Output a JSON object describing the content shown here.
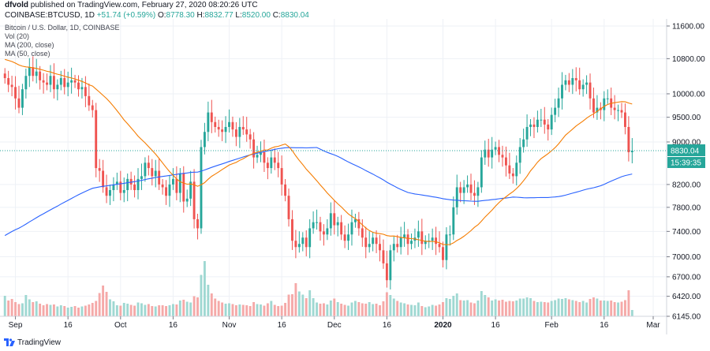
{
  "header": {
    "author": "dfvold",
    "published": "published on TradingView.com, February 27, 2020 08:20:26 UTC",
    "symbol": "COINBASE:BTCUSD, 1D",
    "change": "+51.74 (+0.59%)",
    "o_label": "O:",
    "o_value": "8778.30",
    "h_label": "H:",
    "h_value": "8832.77",
    "l_label": "L:",
    "l_value": "8520.00",
    "c_label": "C:",
    "c_value": "8830.04"
  },
  "legend": {
    "title": "Bitcoin / U.S. Dollar, 1D, COINBASE",
    "vol": "Vol (20)",
    "ma200": "MA (200, close)",
    "ma50": "MA (50, close)"
  },
  "footer": {
    "brand": "TradingView"
  },
  "colors": {
    "up": "#26a69a",
    "down": "#ef5350",
    "vol_up": "#9fd8d2",
    "vol_down": "#f5a9a8",
    "ma200": "#2962ff",
    "ma50": "#f57c00",
    "last_price_bg": "#26a69a",
    "grid": "#eef1f6"
  },
  "chart_data": {
    "type": "candlestick",
    "title": "Bitcoin / U.S. Dollar, 1D, COINBASE",
    "y_ticks": [
      11600,
      10800,
      10000,
      9500,
      9000,
      8200,
      7800,
      7400,
      7000,
      6700,
      6420,
      6145
    ],
    "x_ticks": [
      {
        "label": "Sep",
        "index": 3
      },
      {
        "label": "16",
        "index": 18
      },
      {
        "label": "Oct",
        "index": 33
      },
      {
        "label": "16",
        "index": 48
      },
      {
        "label": "Nov",
        "index": 64
      },
      {
        "label": "16",
        "index": 79
      },
      {
        "label": "Dec",
        "index": 94
      },
      {
        "label": "16",
        "index": 109
      },
      {
        "label": "2020",
        "index": 125
      },
      {
        "label": "16",
        "index": 140
      },
      {
        "label": "Feb",
        "index": 156
      },
      {
        "label": "16",
        "index": 171
      },
      {
        "label": "Mar",
        "index": 185
      }
    ],
    "y_scale": "log",
    "y_range": [
      6145,
      11700
    ],
    "last_price": "8830.04",
    "countdown": "15:39:35",
    "close": [
      10350,
      10200,
      10150,
      9900,
      9700,
      10100,
      10400,
      10600,
      10400,
      10500,
      10300,
      10250,
      10200,
      10400,
      10100,
      10200,
      10350,
      10150,
      10250,
      10300,
      10250,
      10100,
      10150,
      9950,
      9750,
      9650,
      8500,
      8450,
      8150,
      8000,
      8100,
      8200,
      8250,
      8050,
      8100,
      8300,
      8200,
      8100,
      8300,
      8350,
      8600,
      8500,
      8350,
      8450,
      8200,
      8150,
      8000,
      8200,
      8300,
      8050,
      8400,
      7900,
      7950,
      8250,
      7600,
      7450,
      8900,
      9200,
      9600,
      9400,
      9300,
      9250,
      9200,
      9300,
      9400,
      9250,
      9100,
      9300,
      9250,
      9150,
      9050,
      8700,
      8750,
      8800,
      8600,
      8500,
      8700,
      8600,
      8500,
      8200,
      8000,
      7600,
      7250,
      7150,
      7200,
      7300,
      7150,
      7450,
      7550,
      7550,
      7400,
      7350,
      7450,
      7700,
      7500,
      7550,
      7350,
      7250,
      7350,
      7550,
      7600,
      7450,
      7300,
      7150,
      7200,
      7300,
      7200,
      7100,
      6900,
      6650,
      7100,
      7200,
      7150,
      7300,
      7350,
      7200,
      7250,
      7300,
      7400,
      7200,
      7250,
      7250,
      7300,
      7200,
      7150,
      6950,
      7350,
      7350,
      7800,
      8150,
      8050,
      8150,
      8200,
      8050,
      8000,
      8150,
      8700,
      8850,
      8700,
      8850,
      8900,
      8750,
      8700,
      8550,
      8400,
      8350,
      8600,
      8900,
      9050,
      9300,
      9350,
      9300,
      9450,
      9450,
      9350,
      9250,
      9550,
      9700,
      9900,
      10200,
      10300,
      10200,
      10350,
      10300,
      10100,
      10200,
      10250,
      9900,
      9600,
      9700,
      9650,
      9900,
      9900,
      9700,
      9650,
      9650,
      9600,
      9300,
      8800,
      8830
    ],
    "volume": [
      5.2,
      4.0,
      4.4,
      3.6,
      3.1,
      3.3,
      5.4,
      4.3,
      3.6,
      3.8,
      3.2,
      2.8,
      3.1,
      2.9,
      3.0,
      2.5,
      2.8,
      2.6,
      2.2,
      2.4,
      2.6,
      2.2,
      2.5,
      2.7,
      3.0,
      3.4,
      3.9,
      5.9,
      7.8,
      6.2,
      4.3,
      3.8,
      2.8,
      2.7,
      3.4,
      3.2,
      2.9,
      2.7,
      3.5,
      3.3,
      2.9,
      3.1,
      2.6,
      2.5,
      2.8,
      2.8,
      2.6,
      2.8,
      3.1,
      3.0,
      4.0,
      4.2,
      3.7,
      3.5,
      5.1,
      4.8,
      10.5,
      14.0,
      8.0,
      5.8,
      4.5,
      3.9,
      3.5,
      3.2,
      3.3,
      3.1,
      2.8,
      3.0,
      2.9,
      2.8,
      2.6,
      3.6,
      3.1,
      3.0,
      2.7,
      3.3,
      3.9,
      2.9,
      2.6,
      2.7,
      3.4,
      5.5,
      5.6,
      8.4,
      6.3,
      5.5,
      4.6,
      6.6,
      4.6,
      3.5,
      3.2,
      3.3,
      3.0,
      4.0,
      4.5,
      3.6,
      3.2,
      2.9,
      2.7,
      3.5,
      3.9,
      3.6,
      3.3,
      3.2,
      3.6,
      3.1,
      3.2,
      2.8,
      3.8,
      6.1,
      5.4,
      4.5,
      3.9,
      3.5,
      3.3,
      3.0,
      2.9,
      2.8,
      3.5,
      2.6,
      2.3,
      2.5,
      2.9,
      2.7,
      3.0,
      3.6,
      4.6,
      4.4,
      5.2,
      5.8,
      4.1,
      4.0,
      4.1,
      3.5,
      3.3,
      4.0,
      6.4,
      5.4,
      4.8,
      4.0,
      4.3,
      4.0,
      4.2,
      3.7,
      3.9,
      3.8,
      4.0,
      4.5,
      4.5,
      4.8,
      4.6,
      3.9,
      3.6,
      3.7,
      3.6,
      3.5,
      3.9,
      4.1,
      4.5,
      4.4,
      4.6,
      4.3,
      4.1,
      3.9,
      3.6,
      3.9,
      3.5,
      4.4,
      4.8,
      4.5,
      4.0,
      4.0,
      3.9,
      4.0,
      3.6,
      3.5,
      3.7,
      4.1,
      6.6,
      1.6
    ]
  }
}
